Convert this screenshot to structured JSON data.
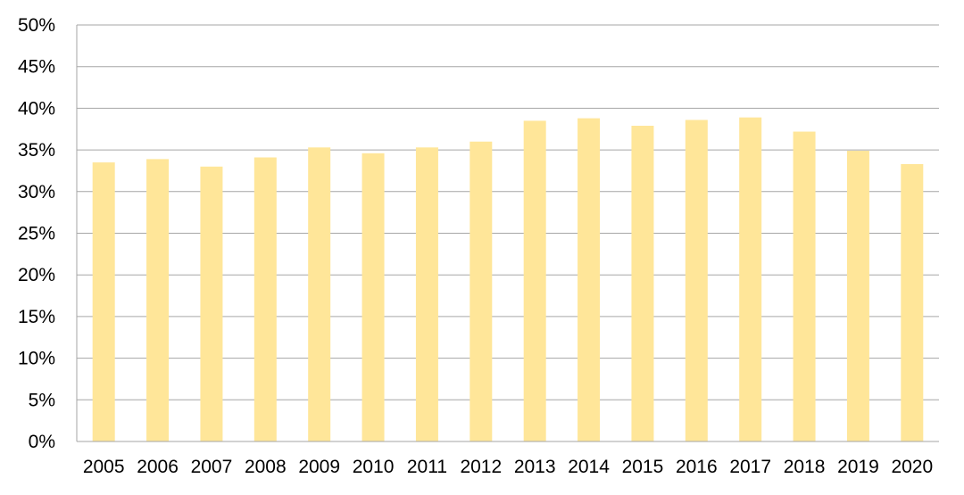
{
  "colors": {
    "bar": "#FFE699",
    "grid": "#A6A6A6",
    "axis": "#A6A6A6",
    "text": "#000000",
    "background": "#FFFFFF"
  },
  "chart_data": {
    "type": "bar",
    "title": "",
    "xlabel": "",
    "ylabel": "",
    "categories": [
      "2005",
      "2006",
      "2007",
      "2008",
      "2009",
      "2010",
      "2011",
      "2012",
      "2013",
      "2014",
      "2015",
      "2016",
      "2017",
      "2018",
      "2019",
      "2020"
    ],
    "series": [
      {
        "values": [
          33.5,
          33.9,
          33.0,
          34.1,
          35.3,
          34.6,
          35.3,
          36.0,
          38.5,
          38.8,
          37.9,
          38.6,
          38.9,
          37.2,
          34.9,
          33.3
        ]
      }
    ],
    "ylim": [
      0,
      50
    ],
    "yticks": [
      0,
      5,
      10,
      15,
      20,
      25,
      30,
      35,
      40,
      45,
      50
    ],
    "ytick_labels": [
      "0%",
      "5%",
      "10%",
      "15%",
      "20%",
      "25%",
      "30%",
      "35%",
      "40%",
      "45%",
      "50%"
    ],
    "grid": true,
    "legend": "none"
  }
}
